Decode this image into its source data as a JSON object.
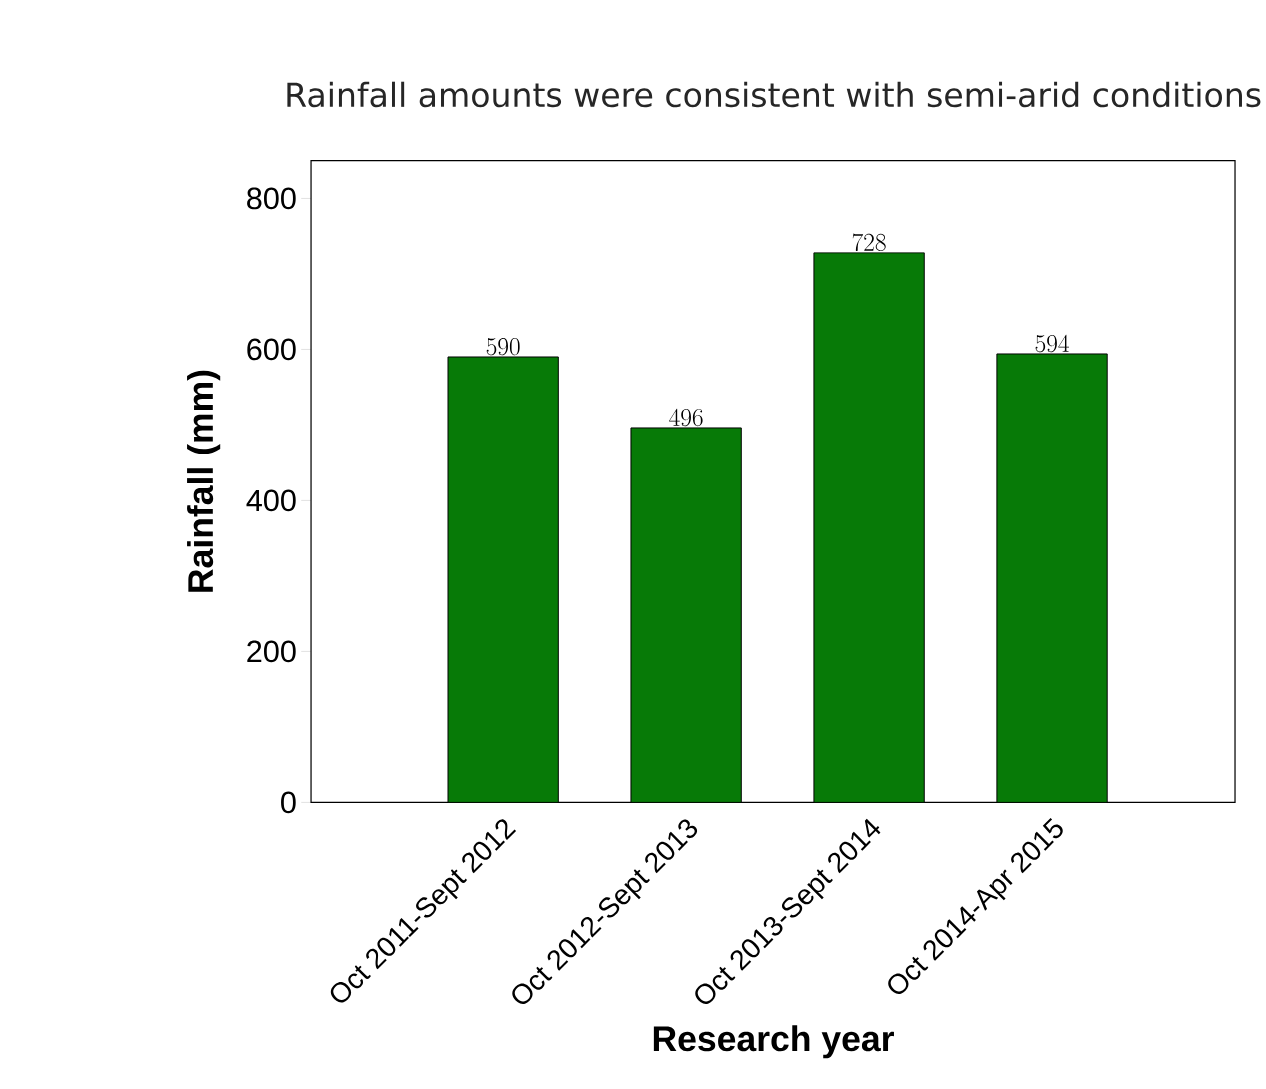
{
  "chart_data": {
    "type": "bar",
    "title": "Rainfall amounts were consistent with semi-arid conditions",
    "xlabel": "Research year",
    "ylabel": "Rainfall (mm)",
    "categories": [
      "Oct 2011-Sept 2012",
      "Oct 2012-Sept 2013",
      "Oct 2013-Sept 2014",
      "Oct 2014-Apr 2015"
    ],
    "values": [
      590,
      496,
      728,
      594
    ],
    "color": "#077a07",
    "ylim": [
      0,
      850
    ],
    "yticks": [
      0,
      200,
      400,
      600,
      800
    ],
    "data_labels": true
  }
}
